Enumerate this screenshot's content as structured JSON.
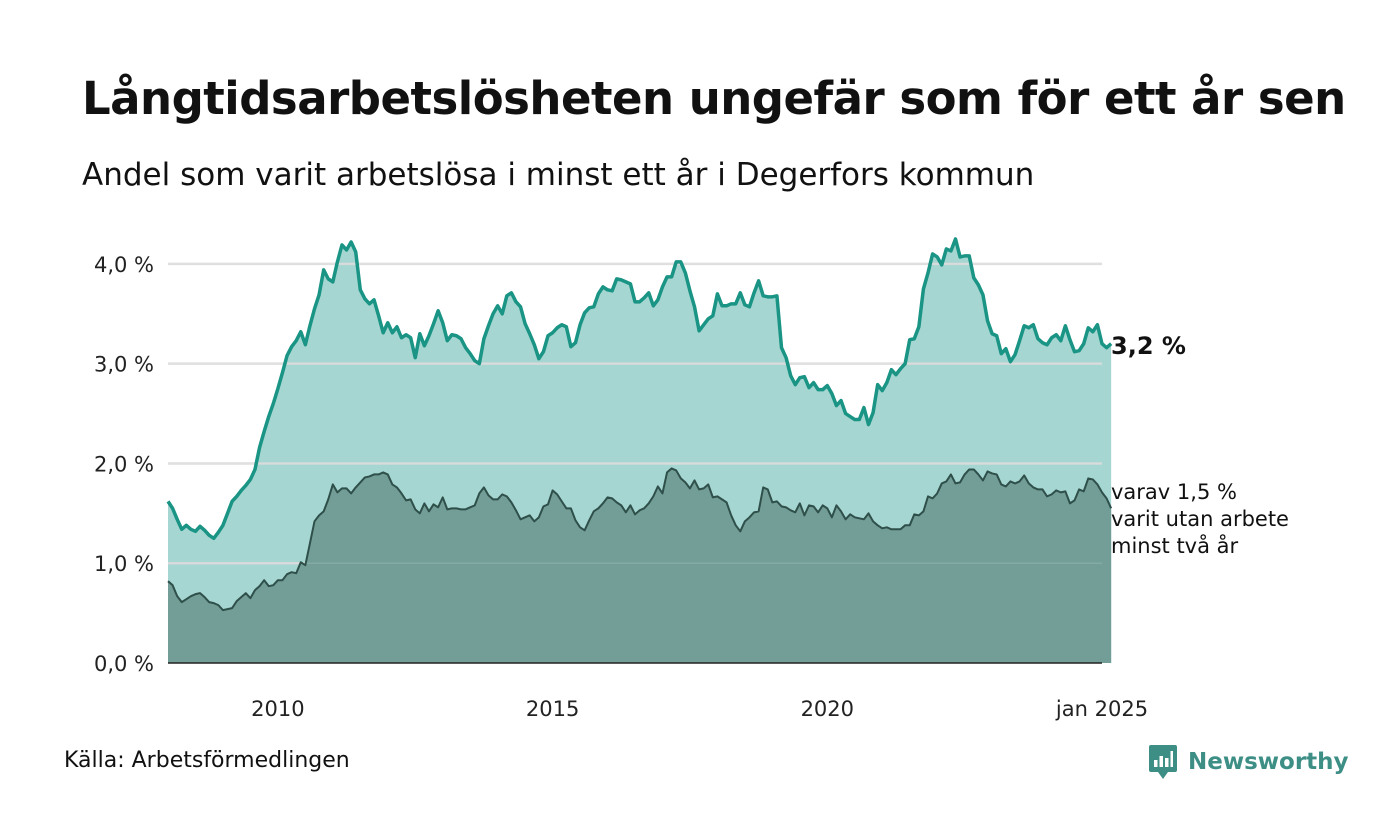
{
  "title": "Långtidsarbetslösheten ungefär som för ett år sen",
  "subtitle": "Andel som varit arbetslösa i minst ett år i Degerfors kommun",
  "source": "Källa: Arbetsförmedlingen",
  "brand": "Newsworthy",
  "colors": {
    "main_line": "#1a9484",
    "main_fill": "#a5d6d1",
    "sub_line": "#2f4f4a",
    "sub_fill": "#729e97",
    "grid": "#d9d9d9",
    "brand": "#3d8f86"
  },
  "chart_data": {
    "type": "area",
    "ylim": [
      0,
      4.4
    ],
    "yticks": [
      {
        "value": 0,
        "label": "0,0 %"
      },
      {
        "value": 1,
        "label": "1,0 %"
      },
      {
        "value": 2,
        "label": "2,0 %"
      },
      {
        "value": 3,
        "label": "3,0 %"
      },
      {
        "value": 4,
        "label": "4,0 %"
      }
    ],
    "xlim": [
      "2008-01",
      "2025-01"
    ],
    "xticks": [
      {
        "value": "2010-01",
        "label": "2010"
      },
      {
        "value": "2015-01",
        "label": "2015"
      },
      {
        "value": "2020-01",
        "label": "2020"
      },
      {
        "value": "2025-01",
        "label": "jan 2025"
      }
    ],
    "x_start": "2008-01",
    "x_interval": "month",
    "series": [
      {
        "name": "",
        "end_label": "3,2 %",
        "values": [
          1.62,
          1.55,
          1.44,
          1.34,
          1.38,
          1.34,
          1.32,
          1.37,
          1.33,
          1.28,
          1.25,
          1.31,
          1.38,
          1.5,
          1.62,
          1.67,
          1.73,
          1.78,
          1.84,
          1.94,
          2.16,
          2.32,
          2.47,
          2.6,
          2.75,
          2.91,
          3.08,
          3.17,
          3.23,
          3.32,
          3.19,
          3.38,
          3.55,
          3.69,
          3.94,
          3.85,
          3.82,
          4.02,
          4.19,
          4.14,
          4.22,
          4.12,
          3.74,
          3.65,
          3.6,
          3.64,
          3.48,
          3.31,
          3.41,
          3.31,
          3.37,
          3.26,
          3.29,
          3.26,
          3.06,
          3.3,
          3.18,
          3.28,
          3.4,
          3.53,
          3.41,
          3.23,
          3.29,
          3.28,
          3.25,
          3.16,
          3.1,
          3.03,
          3.0,
          3.25,
          3.38,
          3.5,
          3.58,
          3.5,
          3.68,
          3.71,
          3.62,
          3.57,
          3.4,
          3.3,
          3.19,
          3.05,
          3.12,
          3.28,
          3.31,
          3.36,
          3.39,
          3.37,
          3.17,
          3.21,
          3.39,
          3.51,
          3.56,
          3.57,
          3.7,
          3.77,
          3.74,
          3.73,
          3.85,
          3.84,
          3.82,
          3.8,
          3.62,
          3.62,
          3.66,
          3.71,
          3.58,
          3.64,
          3.77,
          3.87,
          3.87,
          4.02,
          4.02,
          3.91,
          3.73,
          3.57,
          3.33,
          3.39,
          3.45,
          3.48,
          3.7,
          3.58,
          3.58,
          3.6,
          3.6,
          3.71,
          3.59,
          3.57,
          3.71,
          3.83,
          3.68,
          3.67,
          3.67,
          3.68,
          3.16,
          3.06,
          2.88,
          2.79,
          2.86,
          2.87,
          2.76,
          2.81,
          2.74,
          2.74,
          2.78,
          2.7,
          2.58,
          2.63,
          2.5,
          2.47,
          2.44,
          2.44,
          2.56,
          2.39,
          2.51,
          2.79,
          2.73,
          2.81,
          2.94,
          2.89,
          2.95,
          3.0,
          3.24,
          3.25,
          3.37,
          3.75,
          3.91,
          4.1,
          4.07,
          3.99,
          4.15,
          4.13,
          4.25,
          4.07,
          4.08,
          4.08,
          3.86,
          3.79,
          3.69,
          3.43,
          3.3,
          3.28,
          3.1,
          3.15,
          3.02,
          3.09,
          3.23,
          3.38,
          3.36,
          3.39,
          3.25,
          3.21,
          3.19,
          3.26,
          3.29,
          3.23,
          3.38,
          3.24,
          3.12,
          3.13,
          3.2,
          3.36,
          3.32,
          3.39,
          3.2,
          3.16,
          3.2
        ]
      },
      {
        "name": "",
        "end_label": [
          "varav 1,5 %",
          "varit utan arbete",
          "minst två år"
        ],
        "values": [
          0.82,
          0.78,
          0.67,
          0.61,
          0.64,
          0.67,
          0.69,
          0.7,
          0.66,
          0.61,
          0.6,
          0.58,
          0.53,
          0.54,
          0.55,
          0.62,
          0.66,
          0.7,
          0.65,
          0.73,
          0.77,
          0.83,
          0.77,
          0.78,
          0.83,
          0.83,
          0.89,
          0.91,
          0.9,
          1.01,
          0.98,
          1.2,
          1.42,
          1.48,
          1.52,
          1.64,
          1.79,
          1.71,
          1.75,
          1.75,
          1.7,
          1.76,
          1.81,
          1.86,
          1.87,
          1.89,
          1.89,
          1.91,
          1.89,
          1.79,
          1.76,
          1.7,
          1.63,
          1.64,
          1.54,
          1.5,
          1.6,
          1.52,
          1.59,
          1.56,
          1.66,
          1.54,
          1.55,
          1.55,
          1.54,
          1.54,
          1.56,
          1.58,
          1.7,
          1.76,
          1.68,
          1.64,
          1.64,
          1.69,
          1.67,
          1.61,
          1.53,
          1.44,
          1.46,
          1.48,
          1.42,
          1.46,
          1.57,
          1.59,
          1.73,
          1.69,
          1.62,
          1.55,
          1.55,
          1.43,
          1.36,
          1.33,
          1.43,
          1.52,
          1.55,
          1.6,
          1.66,
          1.65,
          1.61,
          1.58,
          1.51,
          1.58,
          1.49,
          1.53,
          1.55,
          1.6,
          1.67,
          1.77,
          1.7,
          1.91,
          1.95,
          1.93,
          1.85,
          1.81,
          1.75,
          1.83,
          1.74,
          1.75,
          1.79,
          1.66,
          1.67,
          1.64,
          1.61,
          1.48,
          1.38,
          1.32,
          1.42,
          1.46,
          1.51,
          1.52,
          1.76,
          1.74,
          1.61,
          1.62,
          1.57,
          1.56,
          1.53,
          1.51,
          1.6,
          1.48,
          1.58,
          1.57,
          1.51,
          1.58,
          1.55,
          1.46,
          1.58,
          1.52,
          1.44,
          1.49,
          1.46,
          1.45,
          1.44,
          1.5,
          1.42,
          1.38,
          1.35,
          1.36,
          1.34,
          1.34,
          1.34,
          1.38,
          1.38,
          1.49,
          1.48,
          1.52,
          1.67,
          1.65,
          1.7,
          1.8,
          1.82,
          1.89,
          1.8,
          1.81,
          1.89,
          1.94,
          1.94,
          1.89,
          1.83,
          1.92,
          1.9,
          1.89,
          1.79,
          1.77,
          1.82,
          1.8,
          1.82,
          1.88,
          1.8,
          1.76,
          1.74,
          1.74,
          1.67,
          1.69,
          1.73,
          1.71,
          1.72,
          1.6,
          1.63,
          1.74,
          1.72,
          1.85,
          1.84,
          1.79,
          1.71,
          1.65,
          1.55
        ]
      }
    ]
  }
}
